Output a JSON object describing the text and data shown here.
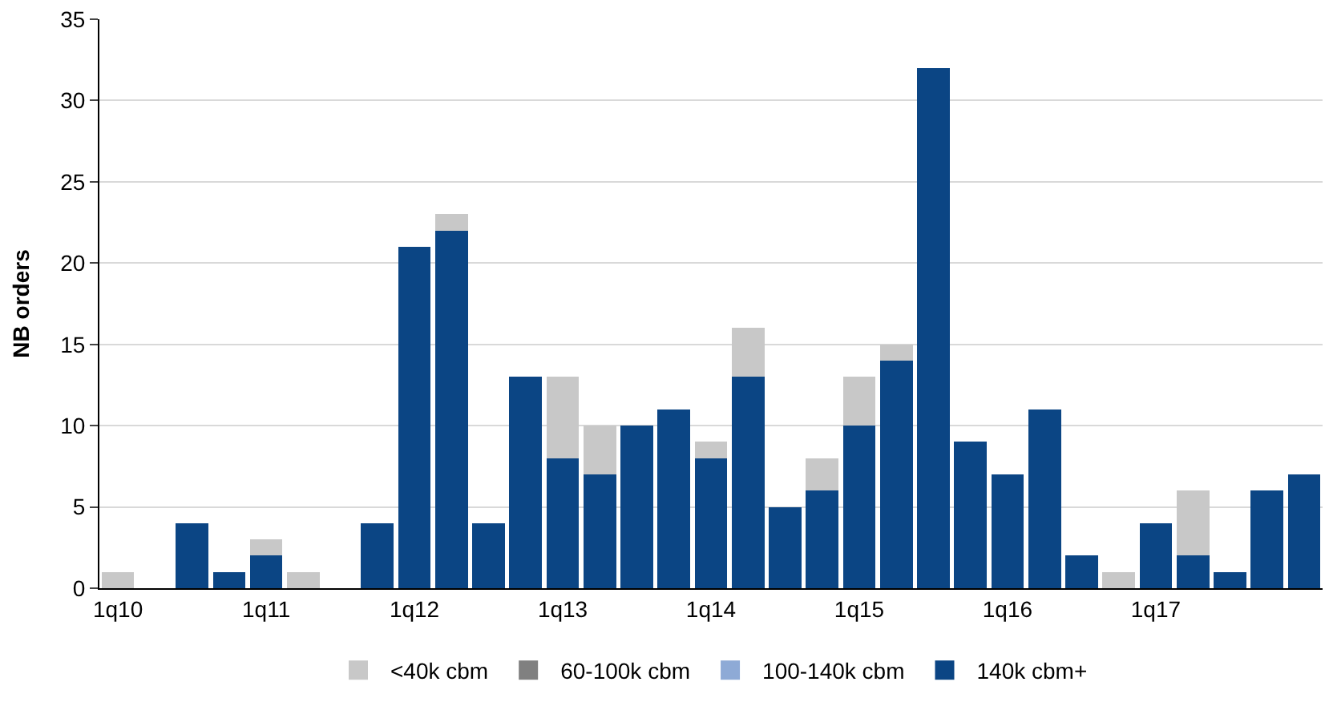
{
  "chart_data": {
    "type": "bar",
    "stacked": true,
    "ylabel": "NB orders",
    "categories": [
      "1q10",
      null,
      null,
      null,
      "1q11",
      null,
      null,
      null,
      "1q12",
      null,
      null,
      null,
      "1q13",
      null,
      null,
      null,
      "1q14",
      null,
      null,
      null,
      "1q15",
      null,
      null,
      null,
      "1q16",
      null,
      null,
      null,
      "1q17",
      null,
      null,
      null,
      null
    ],
    "series": [
      {
        "name": "140k cbm+",
        "color": "#0b4584",
        "values": [
          0,
          0,
          4,
          1,
          2,
          0,
          0,
          4,
          21,
          22,
          4,
          13,
          8,
          7,
          10,
          11,
          8,
          13,
          5,
          6,
          10,
          14,
          32,
          9,
          7,
          11,
          2,
          0,
          4,
          2,
          1,
          6,
          7
        ]
      },
      {
        "name": "100-140k cbm",
        "color": "#8eaad6",
        "values": [
          0,
          0,
          0,
          0,
          0,
          0,
          0,
          0,
          0,
          0,
          0,
          0,
          0,
          0,
          0,
          0,
          0,
          0,
          0,
          0,
          0,
          0,
          0,
          0,
          0,
          0,
          0,
          0,
          0,
          0,
          0,
          0,
          0
        ]
      },
      {
        "name": "60-100k cbm",
        "color": "#808080",
        "values": [
          0,
          0,
          0,
          0,
          0,
          0,
          0,
          0,
          0,
          0,
          0,
          0,
          0,
          0,
          0,
          0,
          0,
          0,
          0,
          0,
          0,
          0,
          0,
          0,
          0,
          0,
          0,
          0,
          0,
          0,
          0,
          0,
          0
        ]
      },
      {
        "name": "<40k cbm",
        "color": "#c8c8c8",
        "values": [
          1,
          0,
          0,
          0,
          1,
          1,
          0,
          0,
          0,
          1,
          0,
          0,
          5,
          3,
          0,
          0,
          1,
          3,
          0,
          2,
          3,
          1,
          0,
          0,
          0,
          0,
          0,
          1,
          0,
          4,
          0,
          0,
          0
        ]
      }
    ],
    "ylim": [
      0,
      35
    ],
    "yticks": [
      0,
      5,
      10,
      15,
      20,
      25,
      30,
      35
    ],
    "grid": "y",
    "legend": "bottom"
  }
}
